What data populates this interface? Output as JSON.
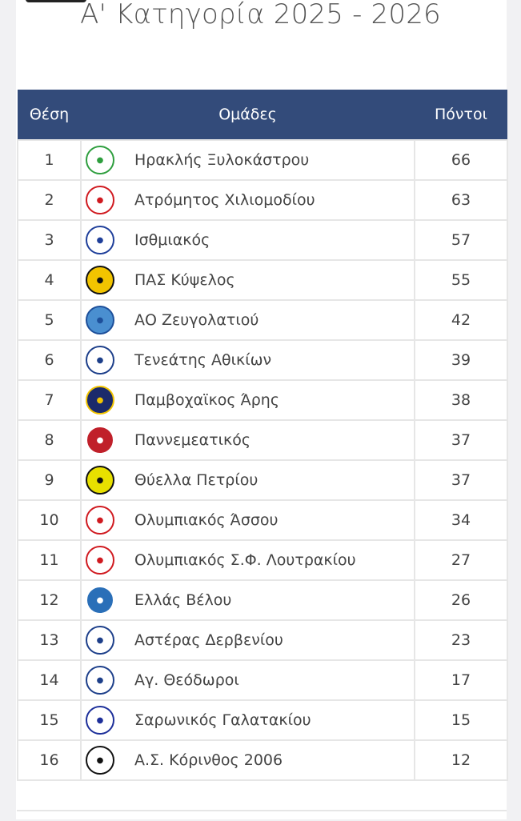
{
  "title": "Α' Κατηγορία 2025 - 2026",
  "table": {
    "headers": {
      "position": "Θέση",
      "teams": "Ομάδες",
      "points": "Πόντοι"
    },
    "rows": [
      {
        "pos": "1",
        "team": "Ηρακλής Ξυλοκάστρου",
        "pts": "66",
        "logo_color": "#2e9e3e",
        "logo_bg": "#ffffff"
      },
      {
        "pos": "2",
        "team": "Ατρόμητος Χιλιομοδίου",
        "pts": "63",
        "logo_color": "#d01a20",
        "logo_bg": "#ffffff"
      },
      {
        "pos": "3",
        "team": "Ισθμιακός",
        "pts": "57",
        "logo_color": "#1f3f9a",
        "logo_bg": "#ffffff"
      },
      {
        "pos": "4",
        "team": "ΠΑΣ Κύψελος",
        "pts": "55",
        "logo_color": "#111111",
        "logo_bg": "#f2c400"
      },
      {
        "pos": "5",
        "team": "ΑΟ Ζευγολατιού",
        "pts": "42",
        "logo_color": "#1d4f9a",
        "logo_bg": "#4a8fd0"
      },
      {
        "pos": "6",
        "team": "Τενεάτης Αθικίων",
        "pts": "39",
        "logo_color": "#1d3f8a",
        "logo_bg": "#ffffff"
      },
      {
        "pos": "7",
        "team": "Παμβοχαϊκος Άρης",
        "pts": "38",
        "logo_color": "#f2c400",
        "logo_bg": "#1b2a6b"
      },
      {
        "pos": "8",
        "team": "Παννεμεατικός",
        "pts": "37",
        "logo_color": "#ffffff",
        "logo_bg": "#c0202a"
      },
      {
        "pos": "9",
        "team": "Θύελλα Πετρίου",
        "pts": "37",
        "logo_color": "#111111",
        "logo_bg": "#e8e000"
      },
      {
        "pos": "10",
        "team": "Ολυμπιακός Άσσου",
        "pts": "34",
        "logo_color": "#d01a20",
        "logo_bg": "#ffffff"
      },
      {
        "pos": "11",
        "team": "Ολυμπιακός Σ.Φ. Λουτρακίου",
        "pts": "27",
        "logo_color": "#d01a20",
        "logo_bg": "#ffffff"
      },
      {
        "pos": "12",
        "team": "Ελλάς Βέλου",
        "pts": "26",
        "logo_color": "#ffffff",
        "logo_bg": "#2a6fb8"
      },
      {
        "pos": "13",
        "team": "Αστέρας Δερβενίου",
        "pts": "23",
        "logo_color": "#1d3f8a",
        "logo_bg": "#ffffff"
      },
      {
        "pos": "14",
        "team": "Αγ. Θεόδωροι",
        "pts": "17",
        "logo_color": "#1d3f8a",
        "logo_bg": "#ffffff"
      },
      {
        "pos": "15",
        "team": "Σαρωνικός Γαλατακίου",
        "pts": "15",
        "logo_color": "#1d2f9a",
        "logo_bg": "#ffffff"
      },
      {
        "pos": "16",
        "team": "Α.Σ. Κόρινθος 2006",
        "pts": "12",
        "logo_color": "#111111",
        "logo_bg": "#ffffff"
      }
    ]
  }
}
